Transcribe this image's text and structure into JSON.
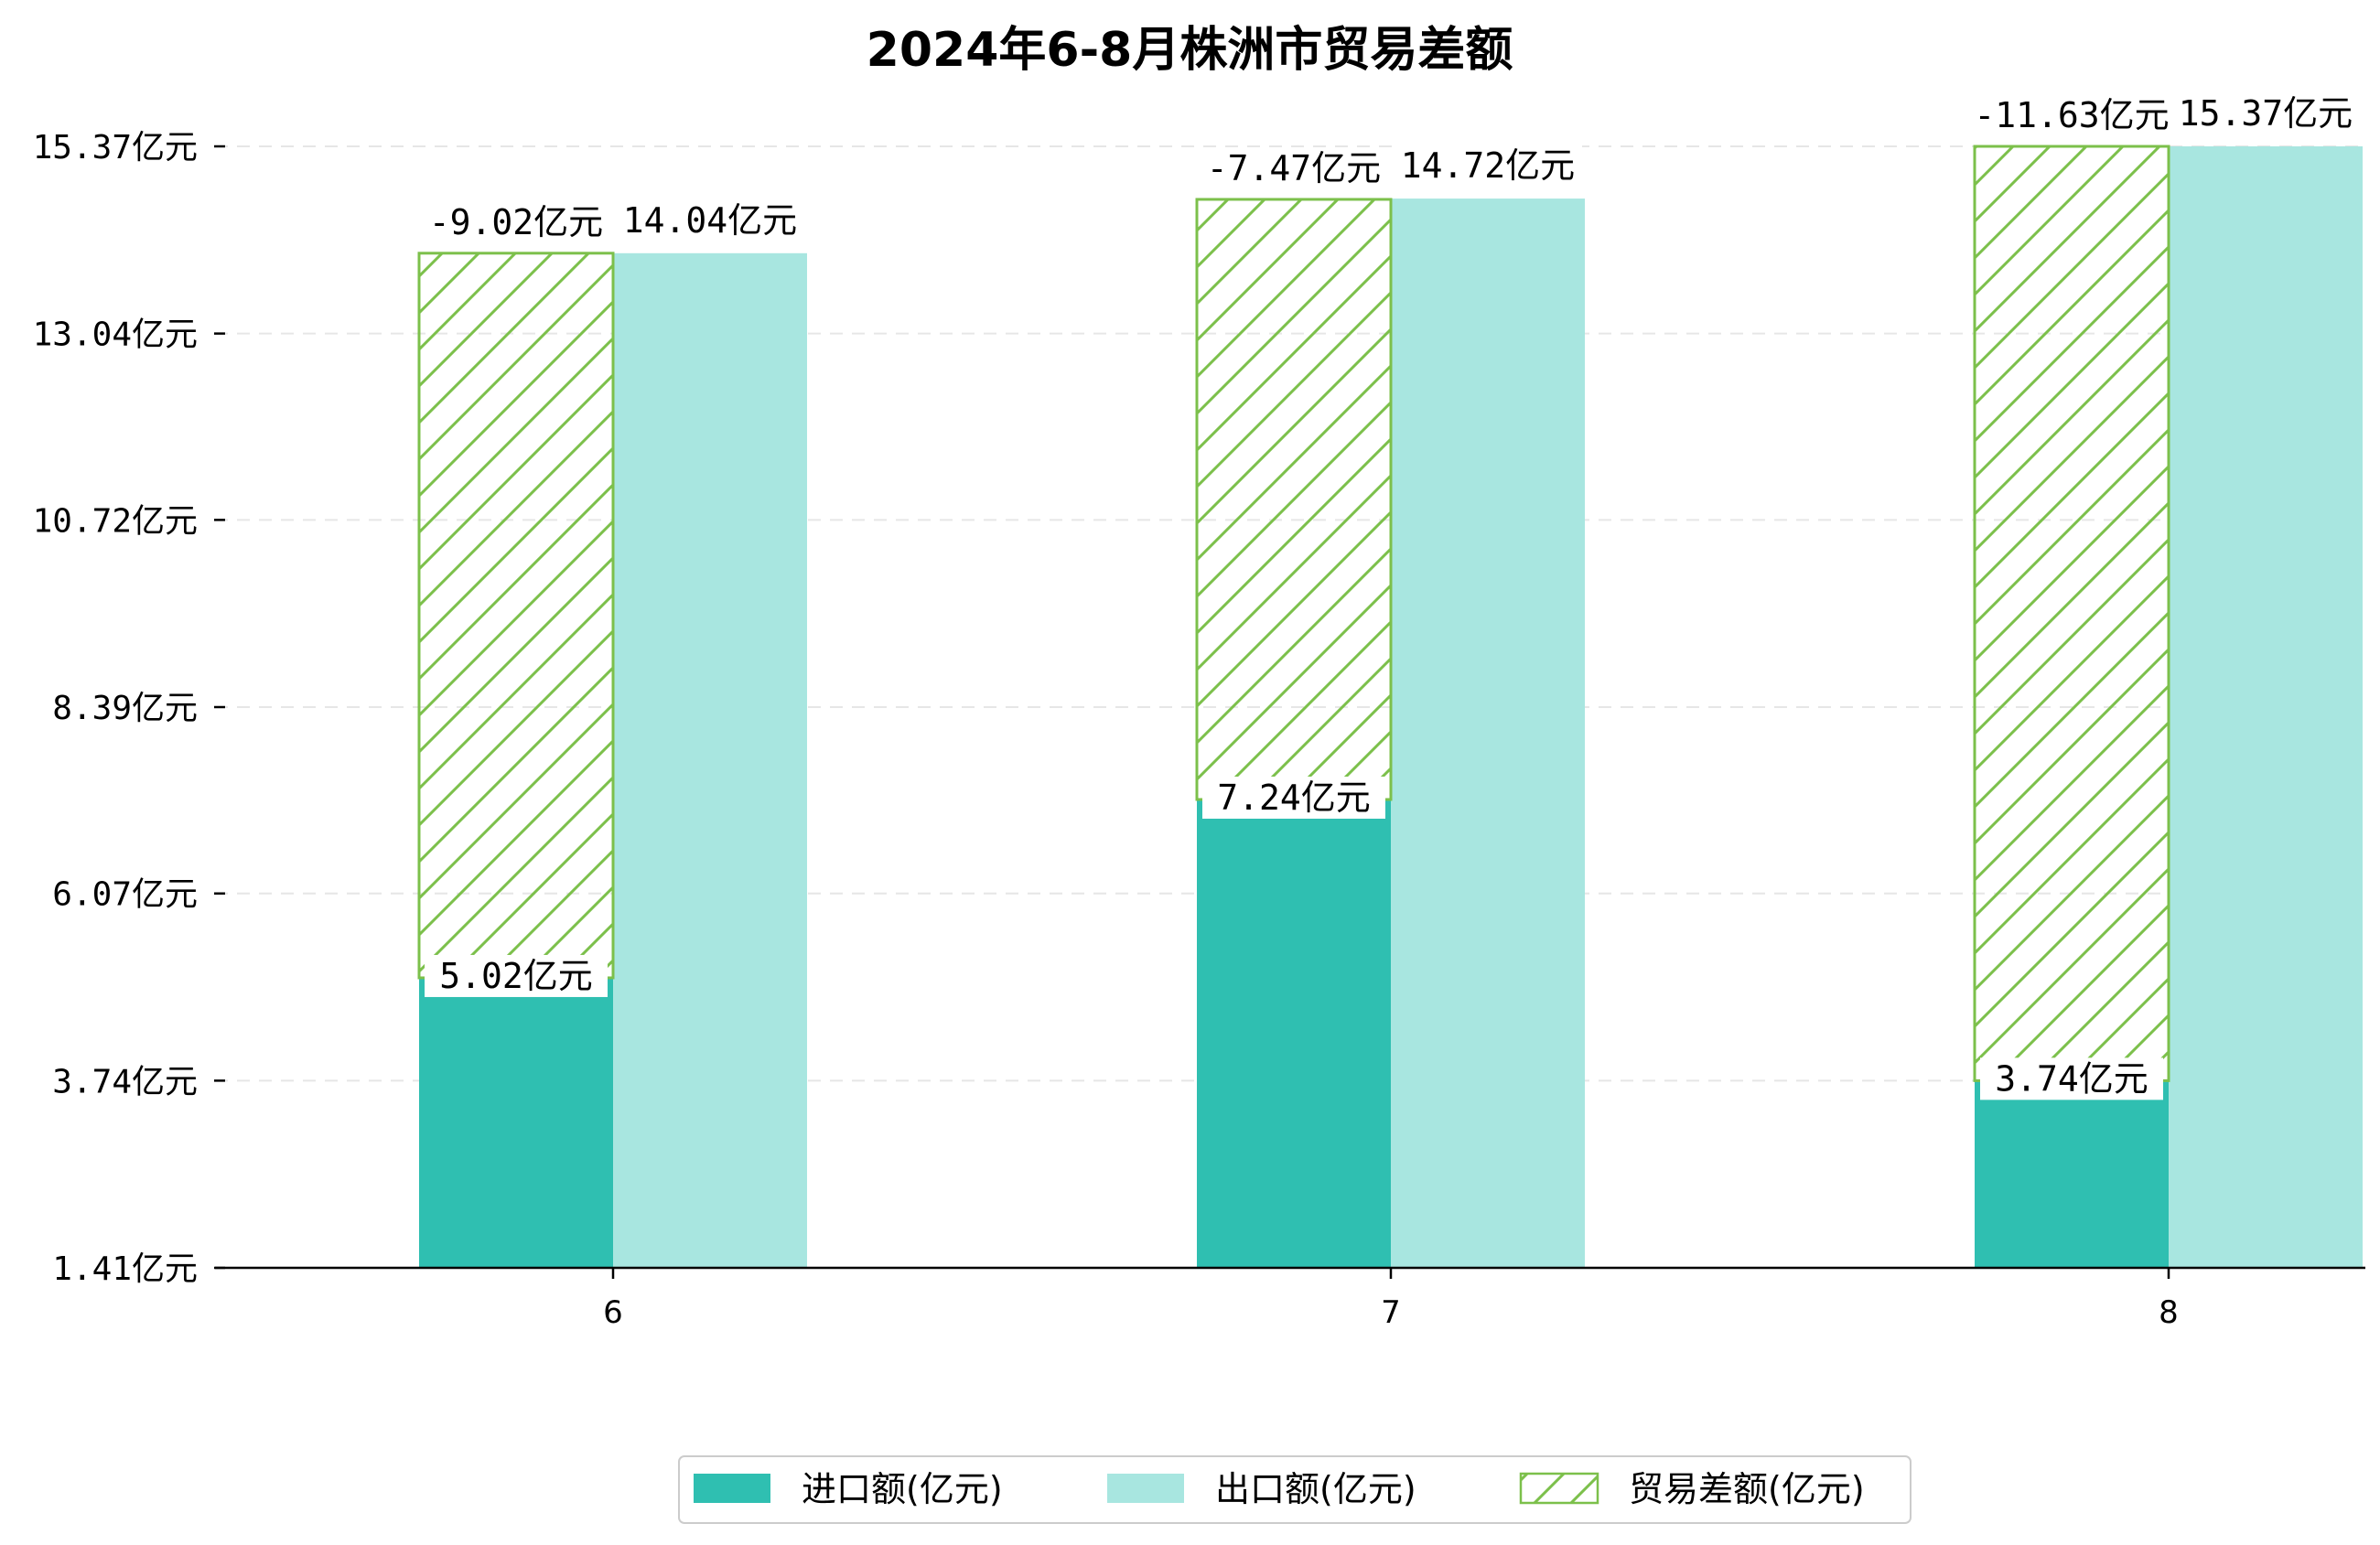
{
  "chart_data": {
    "type": "bar",
    "title": "2024年6-8月株洲市贸易差额",
    "categories": [
      "6",
      "7",
      "8"
    ],
    "series": [
      {
        "name": "进口额(亿元)",
        "values": [
          5.02,
          7.24,
          3.74
        ],
        "labels": [
          "5.02亿元",
          "7.24亿元",
          "3.74亿元"
        ],
        "color": "#2fbfb1"
      },
      {
        "name": "出口额(亿元)",
        "values": [
          14.04,
          14.72,
          15.37
        ],
        "labels": [
          "14.04亿元",
          "14.72亿元",
          "15.37亿元"
        ],
        "color": "#a8e6e0"
      },
      {
        "name": "贸易差额(亿元)",
        "values": [
          -9.02,
          -7.47,
          -11.63
        ],
        "labels": [
          "-9.02亿元",
          "-7.47亿元",
          "-11.63亿元"
        ],
        "color": "#7cc04b",
        "hatch": true
      }
    ],
    "y_ticks": [
      1.41,
      3.74,
      6.07,
      8.39,
      10.72,
      13.04,
      15.37
    ],
    "y_tick_labels": [
      "1.41亿元",
      "3.74亿元",
      "6.07亿元",
      "8.39亿元",
      "10.72亿元",
      "13.04亿元",
      "15.37亿元"
    ],
    "ylim": [
      1.41,
      15.37
    ],
    "grid": "horizontal dashed",
    "legend_position": "bottom-center"
  }
}
